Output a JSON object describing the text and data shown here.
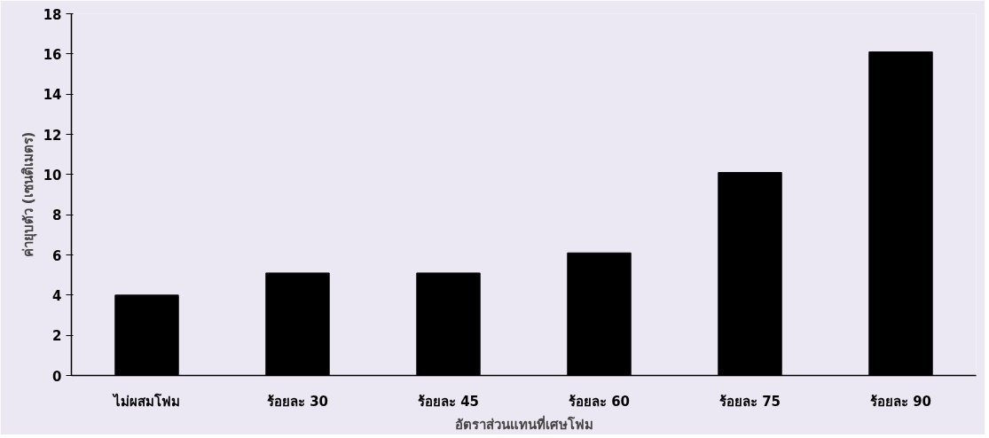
{
  "chart_data": {
    "type": "bar",
    "xlabel": "อัตราส่วนแทนที่เศษโฟม",
    "ylabel": "ค่ายุบตัว (เซนติเมตร)",
    "categories": [
      "ไม่ผสมโฟม",
      "ร้อยละ 30",
      "ร้อยละ 45",
      "ร้อยละ 60",
      "ร้อยละ 75",
      "ร้อยละ 90"
    ],
    "values": [
      4,
      5.1,
      5.1,
      6.1,
      10.1,
      16.1
    ],
    "color": "#000000",
    "ylim": [
      0,
      18
    ],
    "yticks": [
      0,
      2,
      4,
      6,
      8,
      10,
      12,
      14,
      16,
      18
    ],
    "grid": false
  }
}
